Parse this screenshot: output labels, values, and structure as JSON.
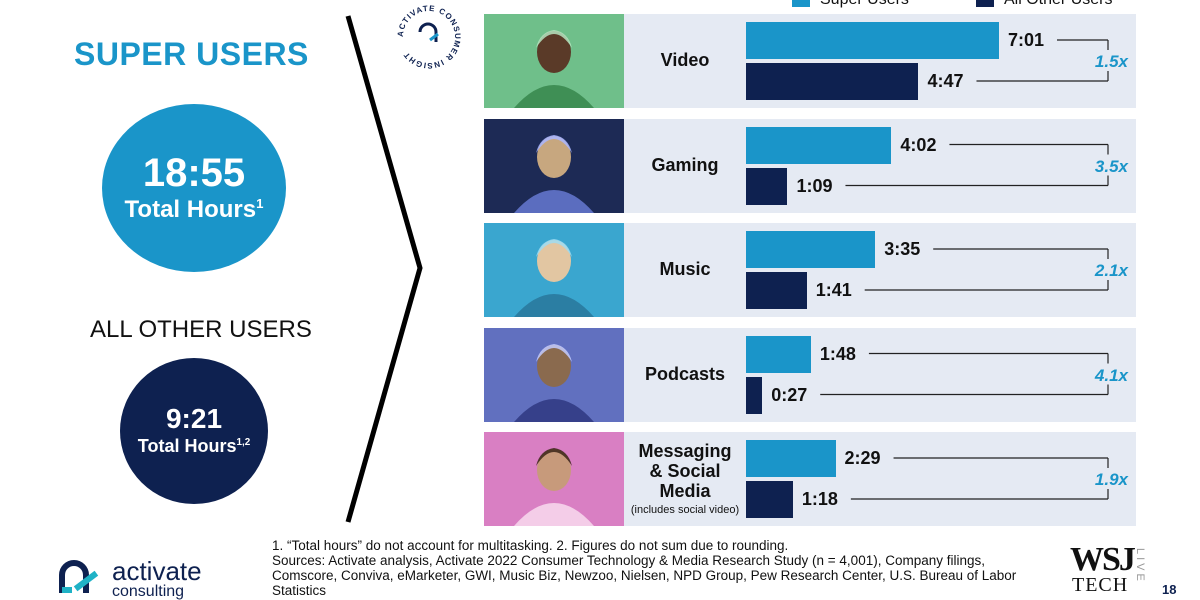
{
  "left": {
    "super_title": "SUPER USERS",
    "super_hours": "18:55",
    "super_hours_label": "Total Hours",
    "super_hours_sup": "1",
    "other_title": "ALL OTHER USERS",
    "other_hours": "9:21",
    "other_hours_label": "Total Hours",
    "other_hours_sup": "1,2"
  },
  "legend": {
    "super": "Super Users",
    "other": "All Other Users"
  },
  "colors": {
    "super": "#1a95c9",
    "other": "#0e2150",
    "row_bg": "#e5eaf3"
  },
  "chart_data": {
    "type": "bar",
    "orientation": "horizontal",
    "unit": "hours:minutes",
    "categories": [
      "Video",
      "Gaming",
      "Music",
      "Podcasts",
      "Messaging & Social Media"
    ],
    "category_notes": [
      "",
      "",
      "",
      "",
      "(includes social video)"
    ],
    "series": [
      {
        "name": "Super Users",
        "values": [
          "7:01",
          "4:02",
          "3:35",
          "1:48",
          "2:29"
        ],
        "minutes": [
          421,
          242,
          215,
          108,
          149
        ]
      },
      {
        "name": "All Other Users",
        "values": [
          "4:47",
          "1:09",
          "1:41",
          "0:27",
          "1:18"
        ],
        "minutes": [
          287,
          69,
          101,
          27,
          78
        ]
      }
    ],
    "ratios": [
      "1.5x",
      "3.5x",
      "2.1x",
      "4.1x",
      "1.9x"
    ],
    "rows": [
      {
        "label": "Video",
        "note": "",
        "super": "7:01",
        "other": "4:47",
        "ratio": "1.5x",
        "photo": "video-photo"
      },
      {
        "label": "Gaming",
        "note": "",
        "super": "4:02",
        "other": "1:09",
        "ratio": "3.5x",
        "photo": "gaming-photo"
      },
      {
        "label": "Music",
        "note": "",
        "super": "3:35",
        "other": "1:41",
        "ratio": "2.1x",
        "photo": "music-photo"
      },
      {
        "label": "Podcasts",
        "note": "",
        "super": "1:48",
        "other": "0:27",
        "ratio": "4.1x",
        "photo": "podcasts-photo"
      },
      {
        "label": "Messaging & Social Media",
        "note": "(includes social video)",
        "super": "2:29",
        "other": "1:18",
        "ratio": "1.9x",
        "photo": "messaging-photo"
      }
    ]
  },
  "badge_text": "ACTIVATE CONSUMER INSIGHT",
  "footnote": {
    "line1": "1. “Total hours” do not account for multitasking.  2. Figures do not sum due to rounding.",
    "line2": "Sources: Activate analysis, Activate 2022 Consumer Technology & Media Research Study (n = 4,001), Company filings, Comscore, Conviva, eMarketer, GWI, Music Biz, Newzoo, Nielsen, NPD Group, Pew Research Center, U.S. Bureau of Labor Statistics"
  },
  "logo": {
    "word1": "activate",
    "word2": "consulting"
  },
  "wsj": {
    "top": "WSJ",
    "bottom": "TECH",
    "side": "LIVE"
  },
  "page_number": "18"
}
